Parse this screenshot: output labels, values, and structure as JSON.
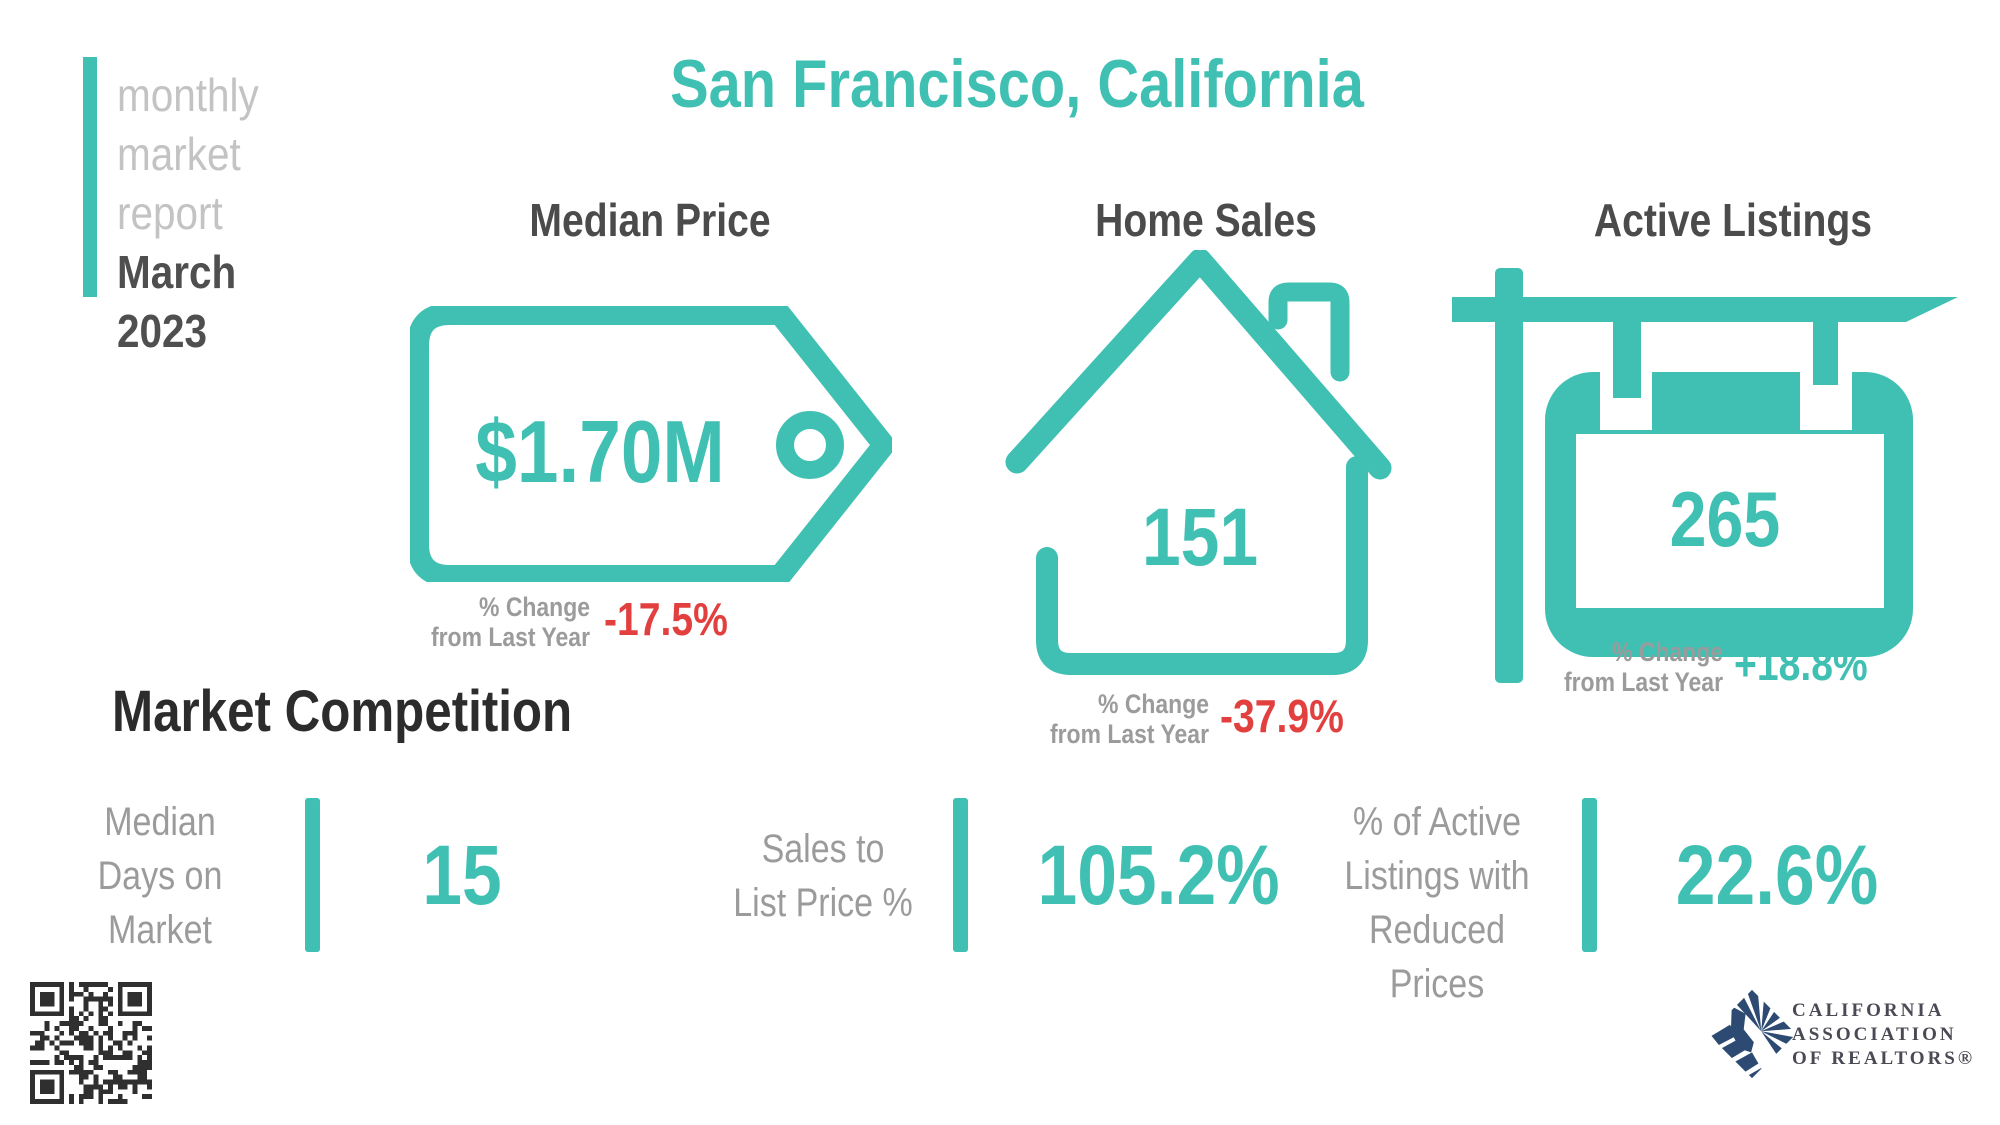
{
  "sidebar": {
    "light_lines": [
      "monthly",
      "market",
      "report"
    ],
    "dark_lines": [
      "March",
      "2023"
    ]
  },
  "title": "San Francisco, California",
  "columns": [
    {
      "icon": "price-tag-icon",
      "title": "Median Price",
      "value": "$1.70M",
      "change_label_lines": [
        "% Change",
        "from Last Year"
      ],
      "change_value": "-17.5%",
      "change_direction": "down"
    },
    {
      "icon": "house-icon",
      "title": "Home Sales",
      "value": "151",
      "change_label_lines": [
        "% Change",
        "from Last Year"
      ],
      "change_value": "-37.9%",
      "change_direction": "down"
    },
    {
      "icon": "sale-sign-icon",
      "title": "Active Listings",
      "value": "265",
      "change_label_lines": [
        "% Change",
        "from Last Year"
      ],
      "change_value": "+18.8%",
      "change_direction": "up"
    }
  ],
  "competition": {
    "heading": "Market Competition",
    "metrics": [
      {
        "label_lines": [
          "Median",
          "Days on",
          "Market"
        ],
        "value": "15"
      },
      {
        "label_lines": [
          "Sales to",
          "List Price %"
        ],
        "value": "105.2%"
      },
      {
        "label_lines": [
          "% of Active",
          "Listings with",
          "Reduced Prices"
        ],
        "value": "22.6%"
      }
    ]
  },
  "footer": {
    "qr_icon": "qr-code-icon",
    "logo_lines": [
      "CALIFORNIA",
      "ASSOCIATION",
      "OF REALTORS®"
    ]
  },
  "colors": {
    "teal": "#3fc0b3",
    "red": "#e2403f",
    "navy": "#2c4a72",
    "label_gray": "#9b9b9b",
    "light_gray": "#c3c3c3",
    "heading_dark": "#2c2c2c"
  }
}
